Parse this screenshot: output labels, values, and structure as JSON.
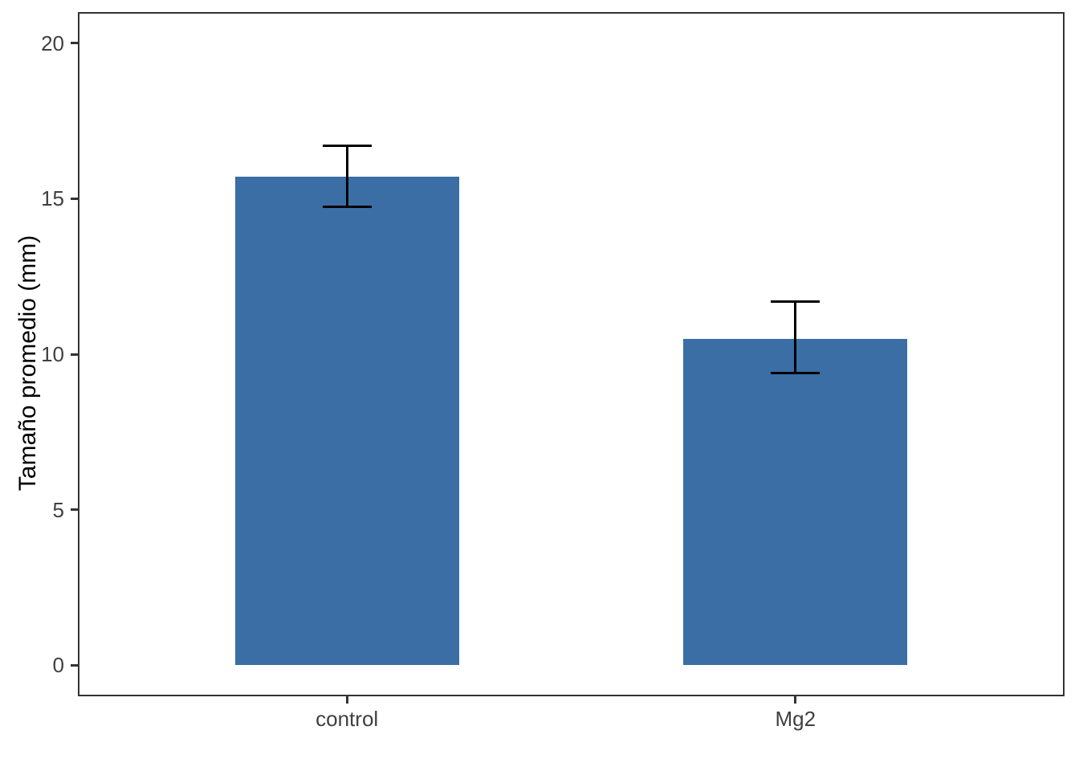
{
  "chart_data": {
    "type": "bar",
    "title": "",
    "categories": [
      "control",
      "Mg2"
    ],
    "values": [
      15.7,
      10.5
    ],
    "error_low": [
      14.75,
      9.4
    ],
    "error_high": [
      16.7,
      11.7
    ],
    "xlabel": "",
    "ylabel": "Tamaño promedio (mm)",
    "yticks": [
      0,
      5,
      10,
      15,
      20
    ],
    "ylim": [
      -1,
      21
    ],
    "grid": false,
    "legend": false,
    "colors": {
      "bar_fill": "#3A6EA5",
      "error_bar": "#000000",
      "panel_border": "#333333",
      "tick_mark": "#333333",
      "tick_label": "#404040",
      "axis_title": "#000000",
      "background": "#ffffff"
    }
  }
}
